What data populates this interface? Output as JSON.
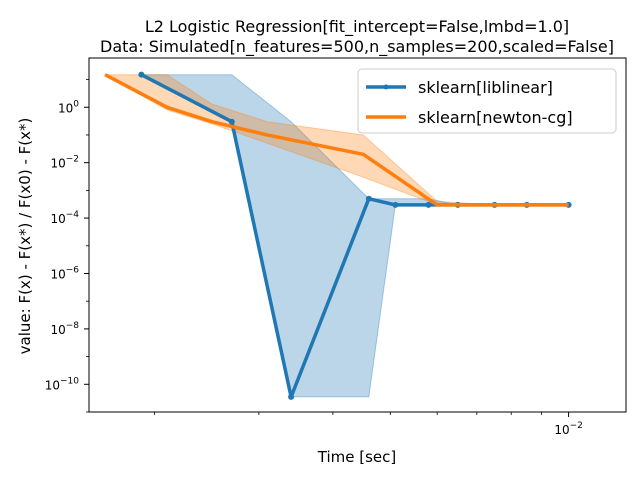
{
  "chart_data": {
    "type": "line",
    "title": "L2 Logistic Regression[fit_intercept=False,lmbd=1.0]",
    "subtitle": "Data: Simulated[n_features=500,n_samples=200,scaled=False]",
    "xlabel": "Time [sec]",
    "ylabel": "value: F(x) - F(x*) / F(x0) - F(x*)",
    "xscale": "log",
    "yscale": "log",
    "xlim": [
      0.00155,
      0.0125
    ],
    "ylim": [
      1e-11,
      60
    ],
    "x_ticks": [
      {
        "value": 0.01,
        "label": "10",
        "exp": "−2"
      }
    ],
    "y_ticks": [
      {
        "value": 1,
        "label": "10",
        "exp": "0"
      },
      {
        "value": 0.01,
        "label": "10",
        "exp": "−2"
      },
      {
        "value": 0.0001,
        "label": "10",
        "exp": "−4"
      },
      {
        "value": 1e-06,
        "label": "10",
        "exp": "−6"
      },
      {
        "value": 1e-08,
        "label": "10",
        "exp": "−8"
      },
      {
        "value": 1e-10,
        "label": "10",
        "exp": "−10"
      }
    ],
    "legend_position": "top-right",
    "grid": false,
    "series": [
      {
        "name": "sklearn[liblinear]",
        "color": "#1f77b4",
        "marker": "point",
        "x": [
          0.0019,
          0.0027,
          0.0034,
          0.0046,
          0.0051,
          0.0058,
          0.0065,
          0.0075,
          0.0085,
          0.01
        ],
        "y": [
          15,
          0.3,
          3.5e-11,
          0.0005,
          0.0003,
          0.0003,
          0.0003,
          0.0003,
          0.0003,
          0.0003
        ],
        "band_lower": [
          15,
          0.3,
          3.5e-11,
          3.5e-11,
          0.0003,
          0.0003,
          0.0003,
          0.0003,
          0.0003,
          0.0003
        ],
        "band_upper": [
          15,
          15,
          0.3,
          0.0005,
          0.0005,
          0.0005,
          0.0003,
          0.0003,
          0.0003,
          0.0003
        ]
      },
      {
        "name": "sklearn[newton-cg]",
        "color": "#ff7f0e",
        "marker": "none",
        "x": [
          0.00165,
          0.0021,
          0.0025,
          0.0031,
          0.0045,
          0.006,
          0.0075,
          0.01
        ],
        "y": [
          15,
          1.0,
          0.3,
          0.1,
          0.02,
          0.0003,
          0.0003,
          0.0003
        ],
        "band_lower": [
          15,
          0.8,
          0.25,
          0.05,
          0.003,
          0.0003,
          0.0003,
          0.0003
        ],
        "band_upper": [
          15,
          15,
          1.3,
          0.3,
          0.1,
          0.0004,
          0.0003,
          0.0003
        ]
      }
    ]
  }
}
